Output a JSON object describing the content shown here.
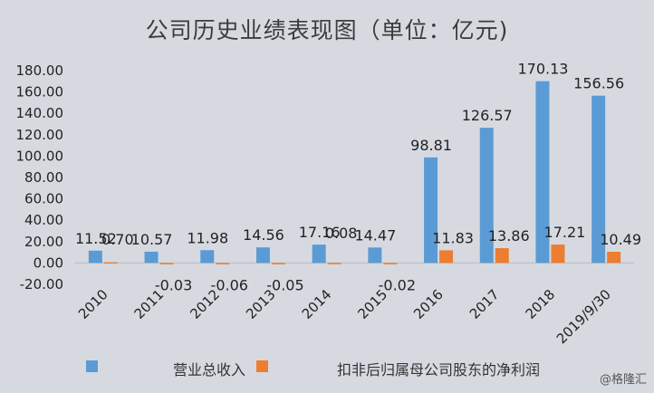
{
  "title": "公司历史业绩表现图（单位：亿元)",
  "watermark": "@格隆汇",
  "colors": {
    "series1": "#5b9bd5",
    "series2": "#ed7d31"
  },
  "chart_data": {
    "type": "bar",
    "title": "公司历史业绩表现图（单位：亿元)",
    "categories": [
      "2010",
      "2011",
      "2012",
      "2013",
      "2014",
      "2015",
      "2016",
      "2017",
      "2018",
      "2019/9/30"
    ],
    "series": [
      {
        "name": "营业总收入",
        "values": [
          11.52,
          10.57,
          11.98,
          14.56,
          17.16,
          14.47,
          98.81,
          126.57,
          170.13,
          156.56
        ]
      },
      {
        "name": "扣非后归属母公司股东的净利润",
        "values": [
          0.7,
          -0.03,
          -0.06,
          -0.05,
          0.08,
          -0.02,
          11.83,
          13.86,
          17.21,
          10.49
        ]
      }
    ],
    "data_labels": [
      [
        "11.52",
        "10.57",
        "11.98",
        "14.56",
        "17.16",
        "14.47",
        "98.81",
        "126.57",
        "170.13",
        "156.56"
      ],
      [
        "0.70",
        "-0.03",
        "-0.06",
        "-0.05",
        "0.08",
        "-0.02",
        "11.83",
        "13.86",
        "17.21",
        "10.49"
      ]
    ],
    "yticks": [
      "-20.00",
      "0.00",
      "20.00",
      "40.00",
      "60.00",
      "80.00",
      "100.00",
      "120.00",
      "140.00",
      "160.00",
      "180.00"
    ],
    "ylim": [
      -20,
      180
    ],
    "grid": false,
    "legend_position": "bottom"
  }
}
